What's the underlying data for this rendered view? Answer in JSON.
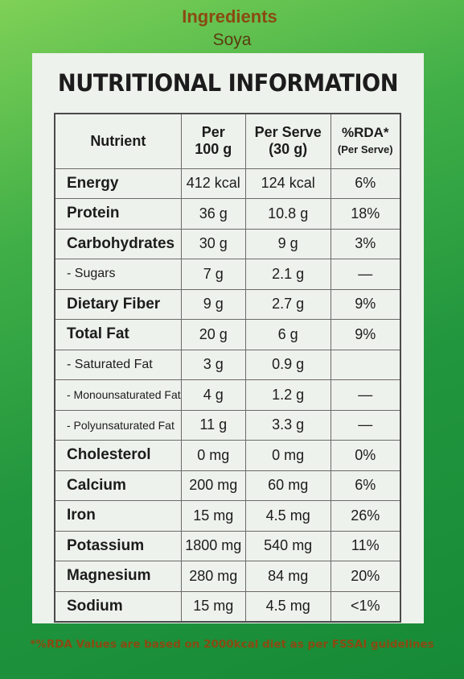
{
  "header": {
    "title": "Ingredients",
    "subtitle": "Soya"
  },
  "panel": {
    "title": "NUTRITIONAL INFORMATION"
  },
  "table": {
    "headers": {
      "nutrient": "Nutrient",
      "per100_line1": "Per",
      "per100_line2": "100 g",
      "serve_line1": "Per Serve",
      "serve_line2": "(30 g)",
      "rda_line1": "%RDA*",
      "rda_line2": "(Per Serve)"
    },
    "rows": [
      {
        "name": "Energy",
        "per100": "412 kcal",
        "serve": "124 kcal",
        "rda": "6%"
      },
      {
        "name": "Protein",
        "per100": "36 g",
        "serve": "10.8 g",
        "rda": "18%"
      },
      {
        "name": "Carbohydrates",
        "per100": "30 g",
        "serve": "9 g",
        "rda": "3%"
      },
      {
        "name": "- Sugars",
        "per100": "7 g",
        "serve": "2.1 g",
        "rda": "—"
      },
      {
        "name": "Dietary Fiber",
        "per100": "9 g",
        "serve": "2.7 g",
        "rda": "9%"
      },
      {
        "name": "Total Fat",
        "per100": "20 g",
        "serve": "6 g",
        "rda": "9%"
      },
      {
        "name": "- Saturated Fat",
        "per100": "3 g",
        "serve": "0.9 g",
        "rda": ""
      },
      {
        "name": "- Monounsaturated Fat",
        "per100": "4 g",
        "serve": "1.2 g",
        "rda": "—"
      },
      {
        "name": "- Polyunsaturated Fat",
        "per100": "11 g",
        "serve": "3.3 g",
        "rda": "—"
      },
      {
        "name": "Cholesterol",
        "per100": "0 mg",
        "serve": "0 mg",
        "rda": "0%"
      },
      {
        "name": "Calcium",
        "per100": "200 mg",
        "serve": "60 mg",
        "rda": "6%"
      },
      {
        "name": "Iron",
        "per100": "15 mg",
        "serve": "4.5 mg",
        "rda": "26%"
      },
      {
        "name": "Potassium",
        "per100": "1800 mg",
        "serve": "540 mg",
        "rda": "11%"
      },
      {
        "name": "Magnesium",
        "per100": "280 mg",
        "serve": "84 mg",
        "rda": "20%"
      },
      {
        "name": "Sodium",
        "per100": "15 mg",
        "serve": "4.5 mg",
        "rda": "<1%"
      }
    ]
  },
  "footnote": "*%RDA Values are based on 2000kcal diet as per FSSAI guidelines"
}
